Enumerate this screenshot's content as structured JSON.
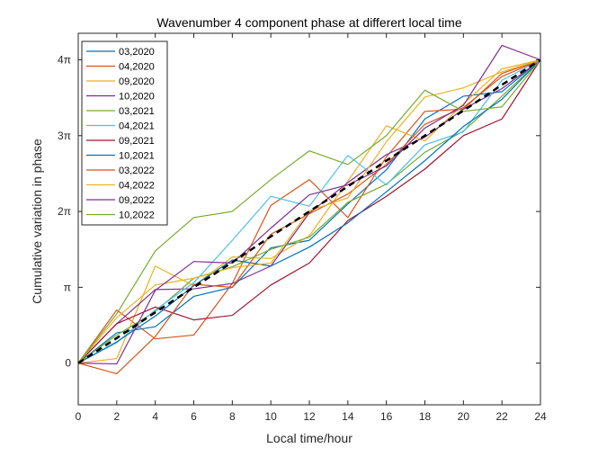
{
  "chart_data": {
    "type": "line",
    "title": "Wavenumber 4 component phase at differert local time",
    "xlabel": "Local time/hour",
    "ylabel": "Cumulative variation in phase",
    "xlim": [
      0,
      24
    ],
    "ylim": [
      -0.55,
      4.35
    ],
    "x": [
      0,
      2,
      4,
      6,
      8,
      10,
      12,
      14,
      16,
      18,
      20,
      22,
      24
    ],
    "x_ticks": [
      0,
      2,
      4,
      6,
      8,
      10,
      12,
      14,
      16,
      18,
      20,
      22,
      24
    ],
    "y_ticks": [
      {
        "value": 0,
        "label": "0"
      },
      {
        "value": 1,
        "label": "π"
      },
      {
        "value": 2,
        "label": "2π"
      },
      {
        "value": 3,
        "label": "3π"
      },
      {
        "value": 4,
        "label": "4π"
      }
    ],
    "y_unit_note": "y values in multiples of π",
    "grid": false,
    "legend_position": "top-left",
    "series": [
      {
        "name": "03,2020",
        "color": "#0072BD",
        "values": [
          0,
          0.4,
          0.48,
          0.88,
          1.0,
          1.52,
          1.62,
          2.1,
          2.55,
          3.22,
          3.52,
          3.58,
          4.0
        ]
      },
      {
        "name": "04,2020",
        "color": "#D95319",
        "values": [
          0,
          0.7,
          0.32,
          0.37,
          1.05,
          2.08,
          2.42,
          1.92,
          2.72,
          3.32,
          3.35,
          3.82,
          4.0
        ]
      },
      {
        "name": "09,2020",
        "color": "#EDB120",
        "values": [
          0,
          0.06,
          1.28,
          1.02,
          1.4,
          1.38,
          1.68,
          2.4,
          3.13,
          2.93,
          3.42,
          3.88,
          4.0
        ]
      },
      {
        "name": "10,2020",
        "color": "#7E2F8E",
        "values": [
          0,
          0.52,
          0.97,
          0.98,
          1.05,
          1.28,
          1.98,
          2.38,
          2.75,
          2.98,
          3.35,
          3.62,
          4.0
        ]
      },
      {
        "name": "03,2021",
        "color": "#77AC30",
        "values": [
          0,
          0.37,
          0.68,
          1.12,
          1.27,
          1.5,
          1.66,
          2.12,
          2.36,
          2.78,
          3.06,
          3.52,
          4.0
        ]
      },
      {
        "name": "04,2021",
        "color": "#4DBEEE",
        "values": [
          0,
          0.27,
          0.7,
          1.06,
          1.62,
          2.2,
          2.07,
          2.74,
          2.35,
          2.88,
          3.05,
          3.73,
          4.0
        ]
      },
      {
        "name": "09,2021",
        "color": "#A2142F",
        "values": [
          0,
          0.52,
          0.74,
          0.57,
          0.63,
          1.03,
          1.32,
          1.88,
          2.2,
          2.56,
          3.0,
          3.22,
          4.0
        ]
      },
      {
        "name": "10,2021",
        "color": "#0072BD",
        "values": [
          0,
          0.28,
          0.62,
          1.02,
          1.36,
          1.28,
          1.53,
          1.85,
          2.26,
          2.67,
          3.12,
          3.48,
          4.0
        ]
      },
      {
        "name": "03,2022",
        "color": "#D95319",
        "values": [
          0,
          -0.14,
          0.35,
          1.04,
          1.0,
          1.7,
          1.97,
          2.23,
          2.62,
          3.15,
          3.37,
          3.78,
          4.0
        ]
      },
      {
        "name": "04,2022",
        "color": "#EDB120",
        "values": [
          0,
          0.6,
          1.03,
          1.12,
          1.26,
          1.32,
          2.01,
          2.18,
          2.92,
          3.51,
          3.63,
          3.84,
          4.0
        ]
      },
      {
        "name": "09,2022",
        "color": "#7E2F8E",
        "values": [
          0,
          -0.01,
          0.96,
          1.34,
          1.32,
          1.78,
          2.22,
          2.35,
          2.6,
          3.1,
          3.4,
          4.19,
          4.0
        ]
      },
      {
        "name": "10,2022",
        "color": "#77AC30",
        "values": [
          0,
          0.65,
          1.48,
          1.92,
          2.0,
          2.42,
          2.8,
          2.62,
          3.0,
          3.6,
          3.32,
          3.38,
          4.0
        ]
      },
      {
        "name": "",
        "color": "#000000",
        "dashed": true,
        "values": [
          0,
          0.33,
          0.67,
          1.0,
          1.33,
          1.67,
          2.0,
          2.33,
          2.67,
          3.0,
          3.33,
          3.67,
          4.0
        ]
      }
    ]
  }
}
